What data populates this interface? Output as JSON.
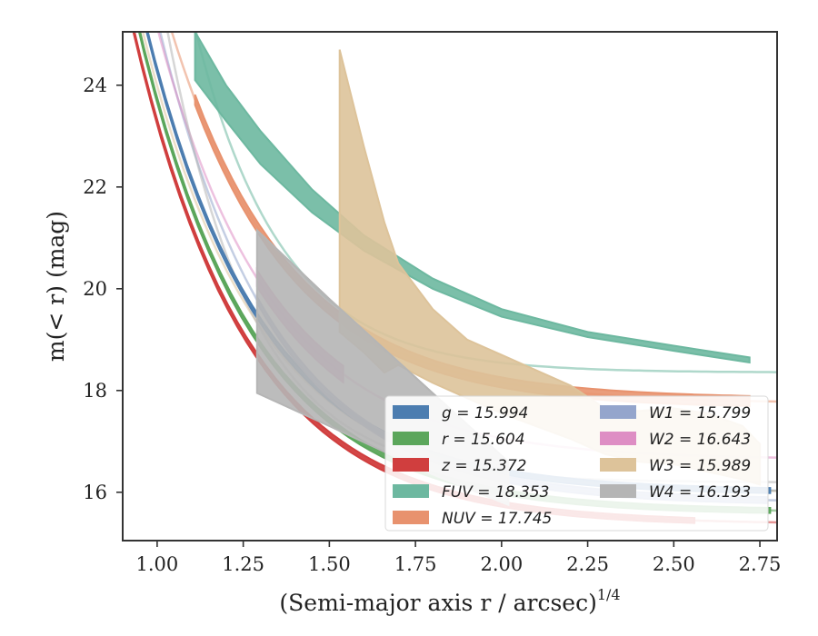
{
  "chart_data": {
    "type": "line",
    "xlabel": "(Semi-major axis r / arcsec)",
    "xlabel_sup": "1/4",
    "ylabel": "m(< r) (mag)",
    "xlim": [
      0.9,
      2.8
    ],
    "ylim": [
      25.05,
      15.05
    ],
    "y_inverted": true,
    "grid": false,
    "legend_position": "bottom-right",
    "x_ticks": [
      1.0,
      1.25,
      1.5,
      1.75,
      2.0,
      2.25,
      2.5,
      2.75
    ],
    "x_tick_labels": [
      "1.00",
      "1.25",
      "1.50",
      "1.75",
      "2.00",
      "2.25",
      "2.50",
      "2.75"
    ],
    "y_ticks": [
      16,
      18,
      20,
      22,
      24
    ],
    "y_tick_labels": [
      "16",
      "18",
      "20",
      "22",
      "24"
    ],
    "series": [
      {
        "name": "g",
        "legend_label": "g = 15.994",
        "color": "#4c7db0",
        "model": [
          15.994,
          8.3,
          3
        ],
        "band_x": [
          0.9,
          2.78
        ],
        "band_width": 0.05
      },
      {
        "name": "r",
        "legend_label": "r = 15.604",
        "color": "#5ba65b",
        "model": [
          15.604,
          8.1,
          3
        ],
        "band_x": [
          0.9,
          2.78
        ],
        "band_width": 0.05
      },
      {
        "name": "z",
        "legend_label": "z = 15.372",
        "color": "#d03e3e",
        "model": [
          15.372,
          7.9,
          3
        ],
        "band_x": [
          0.9,
          2.56
        ],
        "band_width": 0.05
      },
      {
        "name": "FUV",
        "legend_label": "FUV = 18.353",
        "color": "#6db8a0",
        "model": [
          18.353,
          10.5,
          4
        ],
        "band_x": [
          1.11,
          2.72
        ],
        "band_points": [
          [
            1.11,
            24.1,
            25.05
          ],
          [
            1.2,
            23.3,
            24.0
          ],
          [
            1.3,
            22.45,
            23.1
          ],
          [
            1.45,
            21.5,
            21.95
          ],
          [
            1.6,
            20.75,
            21.05
          ],
          [
            1.8,
            20.0,
            20.2
          ],
          [
            2.0,
            19.45,
            19.6
          ],
          [
            2.25,
            19.05,
            19.15
          ],
          [
            2.5,
            18.78,
            18.88
          ],
          [
            2.72,
            18.55,
            18.65
          ]
        ]
      },
      {
        "name": "NUV",
        "legend_label": "NUV = 17.745",
        "color": "#e8926e",
        "model": [
          17.745,
          8.3,
          3
        ],
        "band_x": [
          1.11,
          2.72
        ],
        "band_width": 0.1
      },
      {
        "name": "W1",
        "legend_label": "W1 = 15.799",
        "color": "#94a5cc",
        "model": [
          15.799,
          9.5,
          3
        ],
        "band_x": [
          1.29,
          2.77
        ],
        "band_width": 0.06
      },
      {
        "name": "W2",
        "legend_label": "W2 = 16.643",
        "color": "#de8ec4",
        "model": [
          16.643,
          8.5,
          3
        ],
        "band_x": [
          1.29,
          1.54
        ],
        "band_width": 0.16
      },
      {
        "name": "W3",
        "legend_label": "W3 = 15.989",
        "color": "#ddc39a",
        "model": [
          15.989,
          8.0,
          3
        ],
        "band_points": [
          [
            1.53,
            19.15,
            24.7
          ],
          [
            1.6,
            18.75,
            22.8
          ],
          [
            1.66,
            18.35,
            21.3
          ],
          [
            1.7,
            18.5,
            20.5
          ],
          [
            1.8,
            18.15,
            19.6
          ],
          [
            1.9,
            17.85,
            19.0
          ],
          [
            2.0,
            17.55,
            18.7
          ],
          [
            2.1,
            17.3,
            18.4
          ],
          [
            2.2,
            17.05,
            18.1
          ],
          [
            2.3,
            16.75,
            17.65
          ],
          [
            2.4,
            16.6,
            17.6
          ],
          [
            2.5,
            16.55,
            17.65
          ],
          [
            2.6,
            16.4,
            17.55
          ],
          [
            2.7,
            16.25,
            17.3
          ],
          [
            2.75,
            16.15,
            16.95
          ]
        ]
      },
      {
        "name": "W4",
        "legend_label": "W4 = 16.193",
        "color": "#b5b5b5",
        "model": [
          16.193,
          10.0,
          4
        ],
        "band_points": [
          [
            1.29,
            17.95,
            21.15
          ],
          [
            1.5,
            17.3,
            19.8
          ],
          [
            1.8,
            16.35,
            17.95
          ],
          [
            2.02,
            15.75,
            16.6
          ]
        ]
      }
    ]
  }
}
